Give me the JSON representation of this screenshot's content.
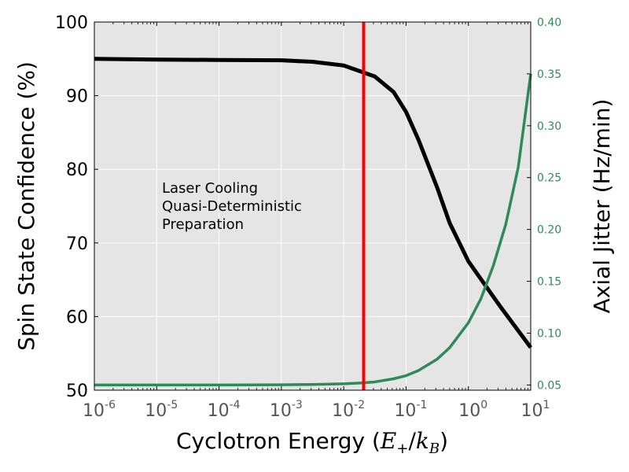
{
  "chart_data": {
    "type": "line",
    "x_scale": "log",
    "xlim_exponent": [
      -6,
      1
    ],
    "x_ticks": [
      {
        "base": "10",
        "exp": "-6"
      },
      {
        "base": "10",
        "exp": "-5"
      },
      {
        "base": "10",
        "exp": "-4"
      },
      {
        "base": "10",
        "exp": "-3"
      },
      {
        "base": "10",
        "exp": "-2"
      },
      {
        "base": "10",
        "exp": "-1"
      },
      {
        "base": "10",
        "exp": "0"
      },
      {
        "base": "10",
        "exp": "1"
      }
    ],
    "xlabel_prefix": "Cyclotron Energy (",
    "xlabel_E": "E",
    "xlabel_E_sub": "+",
    "xlabel_slash": "/",
    "xlabel_k": "k",
    "xlabel_k_sub": "B",
    "xlabel_suffix": ")",
    "ylabel_left": "Spin State Confidence (%)",
    "ylim_left": [
      50,
      100
    ],
    "yticks_left": [
      "50",
      "60",
      "70",
      "80",
      "90",
      "100"
    ],
    "ylabel_right": "Axial Jitter (Hz/min)",
    "ylim_right": [
      0.045,
      0.4
    ],
    "yticks_right": [
      "0.05",
      "0.10",
      "0.15",
      "0.20",
      "0.25",
      "0.30",
      "0.35",
      "0.40"
    ],
    "vline_x_exponent": -1.68,
    "annotation": [
      "Laser Cooling",
      "Quasi-Deterministic",
      "Preparation"
    ],
    "series": [
      {
        "name": "Spin State Confidence",
        "axis": "left",
        "color": "#000000",
        "x_exponent": [
          -6,
          -5,
          -4,
          -3,
          -2.5,
          -2,
          -1.7,
          -1.5,
          -1.2,
          -1,
          -0.8,
          -0.5,
          -0.3,
          0,
          0.5,
          1
        ],
        "values": [
          95.0,
          94.9,
          94.85,
          94.8,
          94.6,
          94.1,
          93.2,
          92.6,
          90.5,
          87.8,
          84.0,
          77.5,
          72.7,
          67.5,
          61.5,
          55.8
        ]
      },
      {
        "name": "Axial Jitter",
        "axis": "right",
        "color": "#2e8b57",
        "x_exponent": [
          -6,
          -5,
          -4,
          -3,
          -2.5,
          -2,
          -1.7,
          -1.5,
          -1.2,
          -1,
          -0.8,
          -0.5,
          -0.3,
          0,
          0.2,
          0.4,
          0.6,
          0.8,
          1
        ],
        "values": [
          0.05,
          0.05,
          0.05,
          0.0502,
          0.0505,
          0.0512,
          0.052,
          0.053,
          0.056,
          0.059,
          0.064,
          0.075,
          0.086,
          0.11,
          0.133,
          0.165,
          0.205,
          0.26,
          0.35
        ]
      }
    ],
    "colors": {
      "plot_background": "#e5e5e5",
      "grid": "#ffffff",
      "vline": "#ff0000",
      "right_axis": "#2e8b57",
      "x_tick_text": "#555555"
    }
  }
}
